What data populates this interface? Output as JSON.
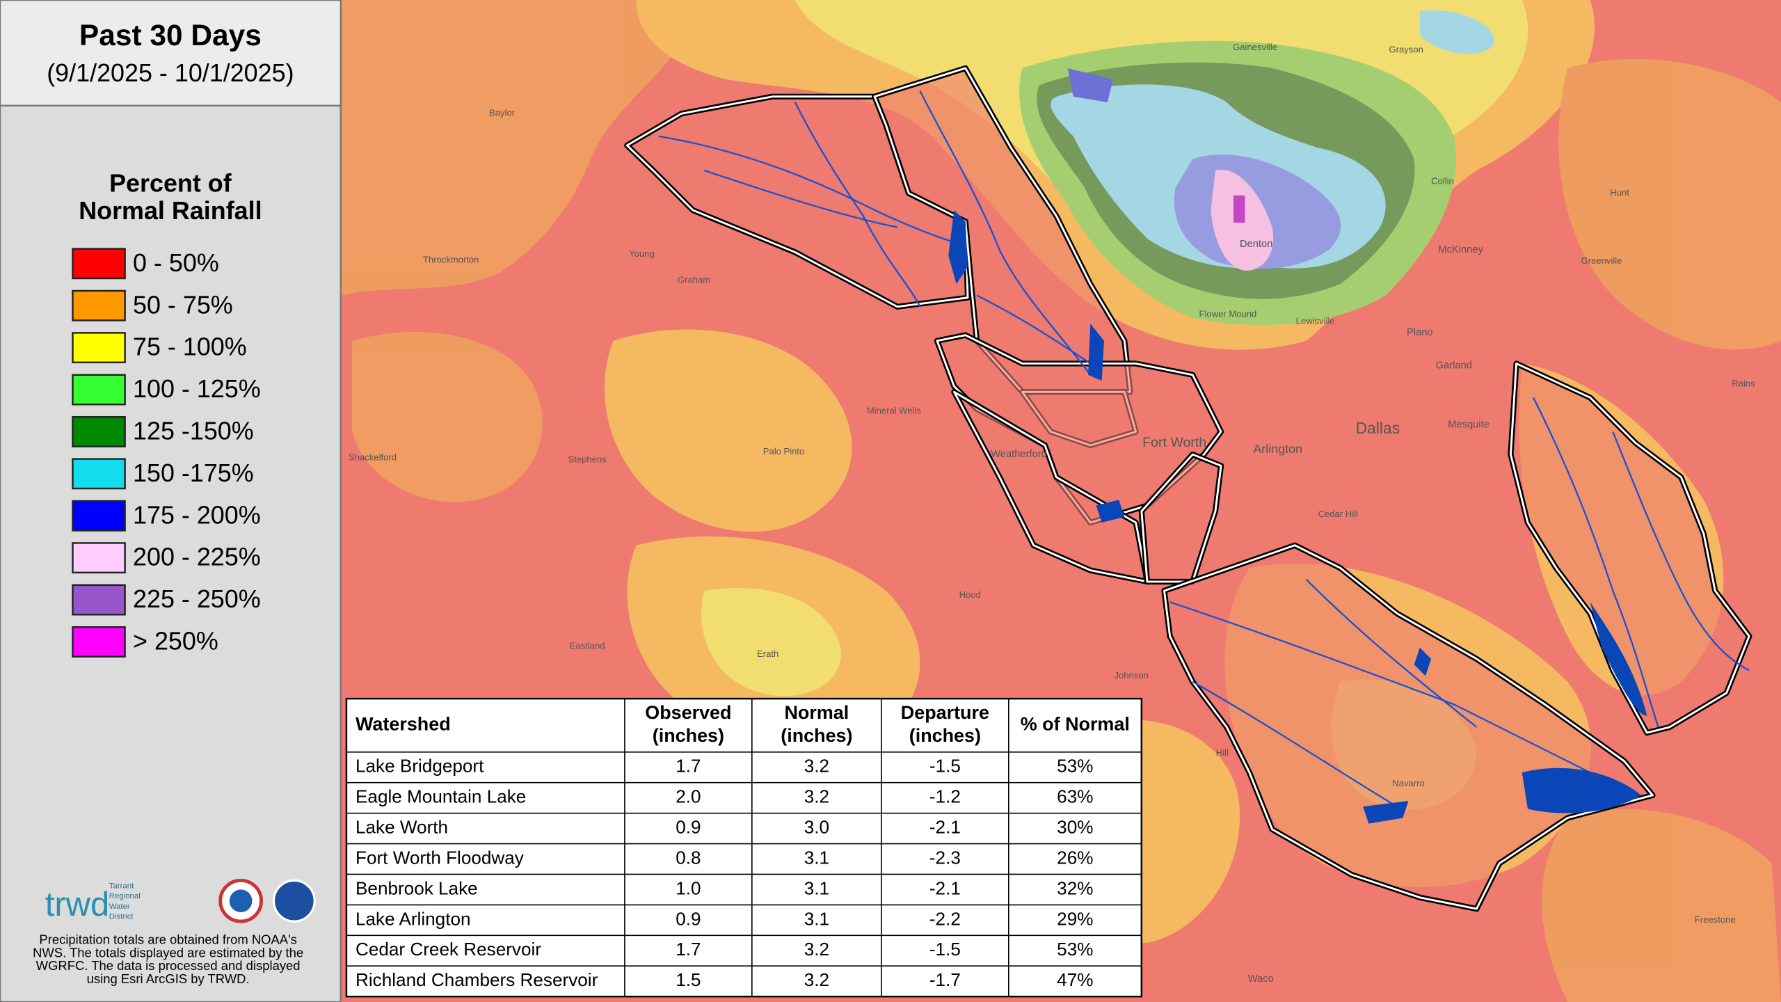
{
  "header": {
    "title": "Past 30 Days",
    "subtitle": "(9/1/2025 - 10/1/2025)"
  },
  "legend": {
    "title": [
      "Percent of",
      "Normal Rainfall"
    ],
    "items": [
      {
        "label": "0 - 50%",
        "color": "#ff0000"
      },
      {
        "label": "50 - 75%",
        "color": "#ff9900"
      },
      {
        "label": "75 - 100%",
        "color": "#ffff00"
      },
      {
        "label": "100 - 125%",
        "color": "#33ff33"
      },
      {
        "label": "125 -150%",
        "color": "#008800"
      },
      {
        "label": "150 -175%",
        "color": "#11ddee"
      },
      {
        "label": "175 - 200%",
        "color": "#0000ff"
      },
      {
        "label": "200 - 225%",
        "color": "#ffccff"
      },
      {
        "label": "225 - 250%",
        "color": "#9955cc"
      },
      {
        "label": "> 250%",
        "color": "#ff00ff"
      }
    ]
  },
  "footer": {
    "logo": "trwd",
    "logo_caption": [
      "Tarrant",
      "Regional",
      "Water",
      "District"
    ],
    "note": [
      "Precipitation totals are obtained from NOAA's",
      "NWS. The totals displayed are estimated by the",
      "WGRFC. The data is processed and displayed",
      "using Esri ArcGIS by TRWD."
    ]
  },
  "table": {
    "columns": [
      [
        "Watershed"
      ],
      [
        "Observed",
        "(inches)"
      ],
      [
        "Normal",
        "(inches)"
      ],
      [
        "Departure",
        "(inches)"
      ],
      [
        "% of Normal"
      ]
    ],
    "rows": [
      [
        "Lake Bridgeport",
        "1.7",
        "3.2",
        "-1.5",
        "53%"
      ],
      [
        "Eagle Mountain Lake",
        "2.0",
        "3.2",
        "-1.2",
        "63%"
      ],
      [
        "Lake Worth",
        "0.9",
        "3.0",
        "-2.1",
        "30%"
      ],
      [
        "Fort Worth Floodway",
        "0.8",
        "3.1",
        "-2.3",
        "26%"
      ],
      [
        "Benbrook Lake",
        "1.0",
        "3.1",
        "-2.1",
        "32%"
      ],
      [
        "Lake Arlington",
        "0.9",
        "3.1",
        "-2.2",
        "29%"
      ],
      [
        "Cedar Creek Reservoir",
        "1.7",
        "3.2",
        "-1.5",
        "53%"
      ],
      [
        "Richland Chambers Reservoir",
        "1.5",
        "3.2",
        "-1.7",
        "47%"
      ]
    ]
  },
  "map_labels": [
    "Dallas",
    "Fort Worth",
    "Arlington",
    "Denton",
    "McKinney",
    "Plano",
    "Garland",
    "Mesquite",
    "Weatherford",
    "Mineral Wells",
    "Graham",
    "Stephens",
    "Throckmorton",
    "Young",
    "Baylor",
    "Eastland",
    "Erath",
    "Hood",
    "Johnson",
    "Hill",
    "Cedar Hill",
    "Lewisville",
    "Flower Mound",
    "Greenville",
    "Collin",
    "Waco",
    "Navarro",
    "Freestone",
    "Palo Pinto",
    "Shackelford",
    "Gainesville",
    "Grayson",
    "Hunt",
    "Rains"
  ]
}
